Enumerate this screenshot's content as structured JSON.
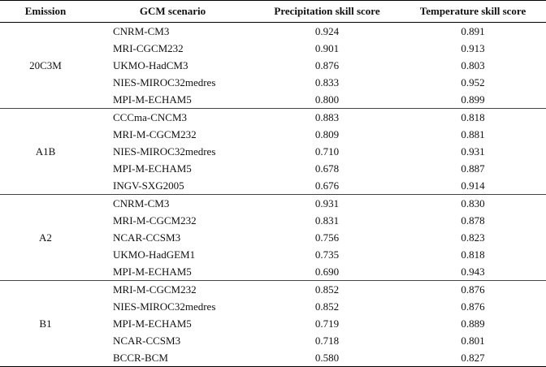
{
  "headers": {
    "emission": "Emission",
    "gcm": "GCM scenario",
    "precip": "Precipitation skill score",
    "temp": "Temperature skill score"
  },
  "groups": [
    {
      "emission": "20C3M",
      "rows": [
        {
          "gcm": "CNRM-CM3",
          "precip": "0.924",
          "temp": "0.891"
        },
        {
          "gcm": "MRI-CGCM232",
          "precip": "0.901",
          "temp": "0.913"
        },
        {
          "gcm": "UKMO-HadCM3",
          "precip": "0.876",
          "temp": "0.803"
        },
        {
          "gcm": "NIES-MIROC32medres",
          "precip": "0.833",
          "temp": "0.952"
        },
        {
          "gcm": "MPI-M-ECHAM5",
          "precip": "0.800",
          "temp": "0.899"
        }
      ]
    },
    {
      "emission": "A1B",
      "rows": [
        {
          "gcm": "CCCma-CNCM3",
          "precip": "0.883",
          "temp": "0.818"
        },
        {
          "gcm": "MRI-M-CGCM232",
          "precip": "0.809",
          "temp": "0.881"
        },
        {
          "gcm": "NIES-MIROC32medres",
          "precip": "0.710",
          "temp": "0.931"
        },
        {
          "gcm": "MPI-M-ECHAM5",
          "precip": "0.678",
          "temp": "0.887"
        },
        {
          "gcm": "INGV-SXG2005",
          "precip": "0.676",
          "temp": "0.914"
        }
      ]
    },
    {
      "emission": "A2",
      "rows": [
        {
          "gcm": "CNRM-CM3",
          "precip": "0.931",
          "temp": "0.830"
        },
        {
          "gcm": "MRI-M-CGCM232",
          "precip": "0.831",
          "temp": "0.878"
        },
        {
          "gcm": "NCAR-CCSM3",
          "precip": "0.756",
          "temp": "0.823"
        },
        {
          "gcm": "UKMO-HadGEM1",
          "precip": "0.735",
          "temp": "0.818"
        },
        {
          "gcm": "MPI-M-ECHAM5",
          "precip": "0.690",
          "temp": "0.943"
        }
      ]
    },
    {
      "emission": "B1",
      "rows": [
        {
          "gcm": "MRI-M-CGCM232",
          "precip": "0.852",
          "temp": "0.876"
        },
        {
          "gcm": "NIES-MIROC32medres",
          "precip": "0.852",
          "temp": "0.876"
        },
        {
          "gcm": "MPI-M-ECHAM5",
          "precip": "0.719",
          "temp": "0.889"
        },
        {
          "gcm": "NCAR-CCSM3",
          "precip": "0.718",
          "temp": "0.801"
        },
        {
          "gcm": "BCCR-BCM",
          "precip": "0.580",
          "temp": "0.827"
        }
      ]
    }
  ]
}
